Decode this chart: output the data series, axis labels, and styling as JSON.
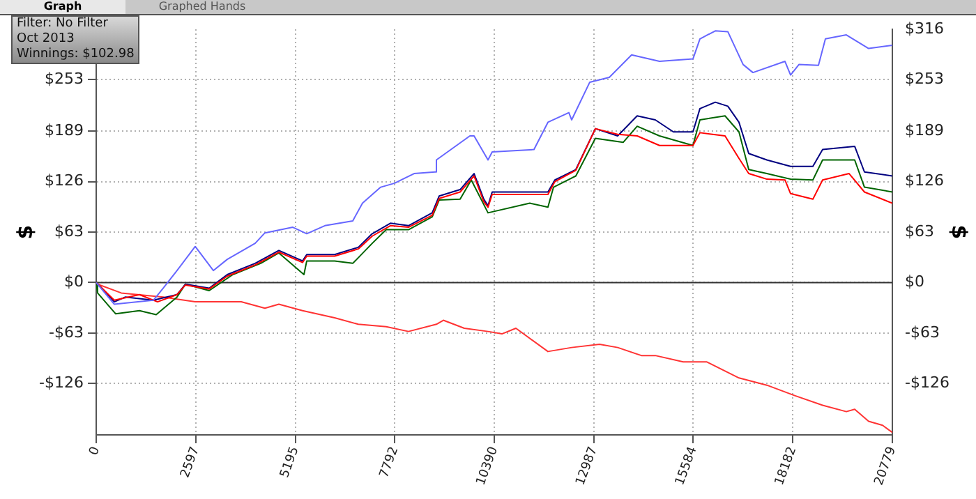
{
  "chart_data": {
    "type": "line",
    "ylabel": "$",
    "y2label": "$",
    "annotations": [
      "Graph",
      "Graphed Hands",
      "Filter: No Filter",
      "Oct 2013",
      "Winnings: $102.98"
    ],
    "xlim": [
      0,
      20779
    ],
    "xticks": [
      0,
      2597,
      5195,
      7792,
      10390,
      12987,
      15584,
      18182,
      20779
    ],
    "ylim": [
      -190,
      316
    ],
    "yticks": [
      {
        "value": -126,
        "label": "-$126"
      },
      {
        "value": -63,
        "label": "-$63"
      },
      {
        "value": 0,
        "label": "$0"
      },
      {
        "value": 63,
        "label": "$63"
      },
      {
        "value": 126,
        "label": "$126"
      },
      {
        "value": 189,
        "label": "$189"
      },
      {
        "value": 253,
        "label": "$253"
      }
    ],
    "y2lim": [
      -190,
      316
    ],
    "y2ticks": [
      {
        "value": -126,
        "label": "-$126"
      },
      {
        "value": -63,
        "label": "-$63"
      },
      {
        "value": 0,
        "label": "$0"
      },
      {
        "value": 63,
        "label": "$63"
      },
      {
        "value": 126,
        "label": "$126"
      },
      {
        "value": 189,
        "label": "$189"
      },
      {
        "value": 253,
        "label": "$253"
      },
      {
        "value": 316,
        "label": "$316"
      }
    ],
    "grid": true,
    "legend": false,
    "marker": "none",
    "line_style": "solid",
    "ref_lines": [
      {
        "axis": "y",
        "value": 0,
        "color": "#333333",
        "line_style": "solid"
      }
    ],
    "series": [
      {
        "color": "#6666ff",
        "x": [
          0,
          473,
          1492,
          1747,
          2110,
          2584,
          3057,
          3421,
          4148,
          4403,
          5131,
          5495,
          5968,
          6696,
          6950,
          7424,
          7788,
          8297,
          8843,
          8879,
          9753,
          9862,
          10226,
          10335,
          11426,
          11790,
          12336,
          12409,
          12882,
          13392,
          13974,
          14702,
          15575,
          15757,
          16157,
          16485,
          16885,
          17140,
          17977,
          18123,
          18341,
          18850,
          19032,
          19578,
          20160,
          20779
        ],
        "values": [
          0,
          -27,
          -22,
          -7,
          15,
          45,
          15,
          29,
          49,
          62,
          69,
          61,
          71,
          77,
          99,
          119,
          124,
          136,
          138,
          153,
          183,
          183,
          153,
          163,
          166,
          200,
          212,
          203,
          250,
          256,
          284,
          276,
          279,
          304,
          314,
          313,
          272,
          262,
          276,
          259,
          272,
          271,
          304,
          309,
          292,
          296
        ]
      },
      {
        "color": "#ff0000",
        "x": [
          0,
          473,
          1128,
          1601,
          2110,
          2329,
          2948,
          3421,
          4148,
          4767,
          5386,
          5495,
          6223,
          6841,
          7205,
          7678,
          8151,
          8770,
          8952,
          9498,
          9862,
          10116,
          10226,
          10335,
          11790,
          11972,
          12518,
          13028,
          13610,
          14119,
          14702,
          15575,
          15757,
          16412,
          16776,
          17031,
          17504,
          17977,
          18123,
          18705,
          18959,
          19650,
          20051,
          20779
        ],
        "values": [
          0,
          -22,
          -15,
          -24,
          -15,
          -3,
          -8,
          8,
          22,
          38,
          25,
          33,
          33,
          42,
          58,
          71,
          69,
          84,
          105,
          113,
          133,
          101,
          94,
          110,
          110,
          126,
          140,
          192,
          185,
          183,
          171,
          171,
          187,
          183,
          155,
          136,
          129,
          128,
          111,
          104,
          128,
          136,
          113,
          99
        ]
      },
      {
        "color": "#000080",
        "x": [
          0,
          146,
          473,
          764,
          1492,
          2110,
          2329,
          2948,
          3421,
          4148,
          4767,
          5386,
          5495,
          6223,
          6841,
          7205,
          7678,
          8151,
          8770,
          8952,
          9498,
          9862,
          10116,
          10226,
          10335,
          11790,
          11972,
          12518,
          13028,
          13610,
          14119,
          14592,
          15065,
          15575,
          15757,
          16157,
          16485,
          16776,
          17031,
          17504,
          18123,
          18705,
          18959,
          19796,
          20051,
          20779
        ],
        "values": [
          0,
          -7,
          -24,
          -18,
          -22,
          -15,
          -2,
          -7,
          10,
          24,
          40,
          27,
          35,
          35,
          44,
          61,
          74,
          71,
          87,
          108,
          116,
          136,
          104,
          96,
          113,
          113,
          128,
          141,
          192,
          183,
          208,
          203,
          188,
          188,
          217,
          225,
          220,
          200,
          161,
          153,
          145,
          145,
          166,
          170,
          138,
          133
        ]
      },
      {
        "color": "#006400",
        "x": [
          0,
          36,
          509,
          1128,
          1565,
          2110,
          2329,
          2948,
          3566,
          4294,
          4767,
          5422,
          5495,
          6223,
          6696,
          7205,
          7569,
          8151,
          8770,
          8952,
          9498,
          9789,
          10226,
          11317,
          11790,
          11936,
          12518,
          13028,
          13756,
          14119,
          14702,
          15575,
          15757,
          16412,
          16776,
          17031,
          17504,
          18123,
          18705,
          18959,
          19796,
          20051,
          20779
        ],
        "values": [
          0,
          -13,
          -39,
          -35,
          -40,
          -18,
          -2,
          -10,
          10,
          24,
          37,
          10,
          27,
          27,
          24,
          49,
          66,
          66,
          82,
          103,
          104,
          128,
          87,
          99,
          94,
          119,
          133,
          180,
          175,
          195,
          183,
          171,
          203,
          208,
          188,
          141,
          136,
          129,
          128,
          153,
          153,
          119,
          113
        ]
      },
      {
        "color": "#ff3333",
        "x": [
          0,
          36,
          655,
          1747,
          2584,
          3785,
          4403,
          4767,
          5386,
          6223,
          6841,
          7569,
          8151,
          8879,
          9061,
          9607,
          10226,
          10590,
          10954,
          11790,
          12409,
          13137,
          13610,
          14229,
          14592,
          15320,
          15939,
          16776,
          17504,
          18232,
          18959,
          19578,
          19796,
          20160,
          20524,
          20779
        ],
        "values": [
          0,
          -2,
          -13,
          -18,
          -24,
          -24,
          -32,
          -27,
          -35,
          -44,
          -52,
          -55,
          -61,
          -52,
          -47,
          -57,
          -61,
          -64,
          -57,
          -86,
          -81,
          -77,
          -81,
          -91,
          -91,
          -99,
          -99,
          -119,
          -128,
          -141,
          -153,
          -161,
          -158,
          -173,
          -178,
          -187
        ]
      }
    ]
  }
}
